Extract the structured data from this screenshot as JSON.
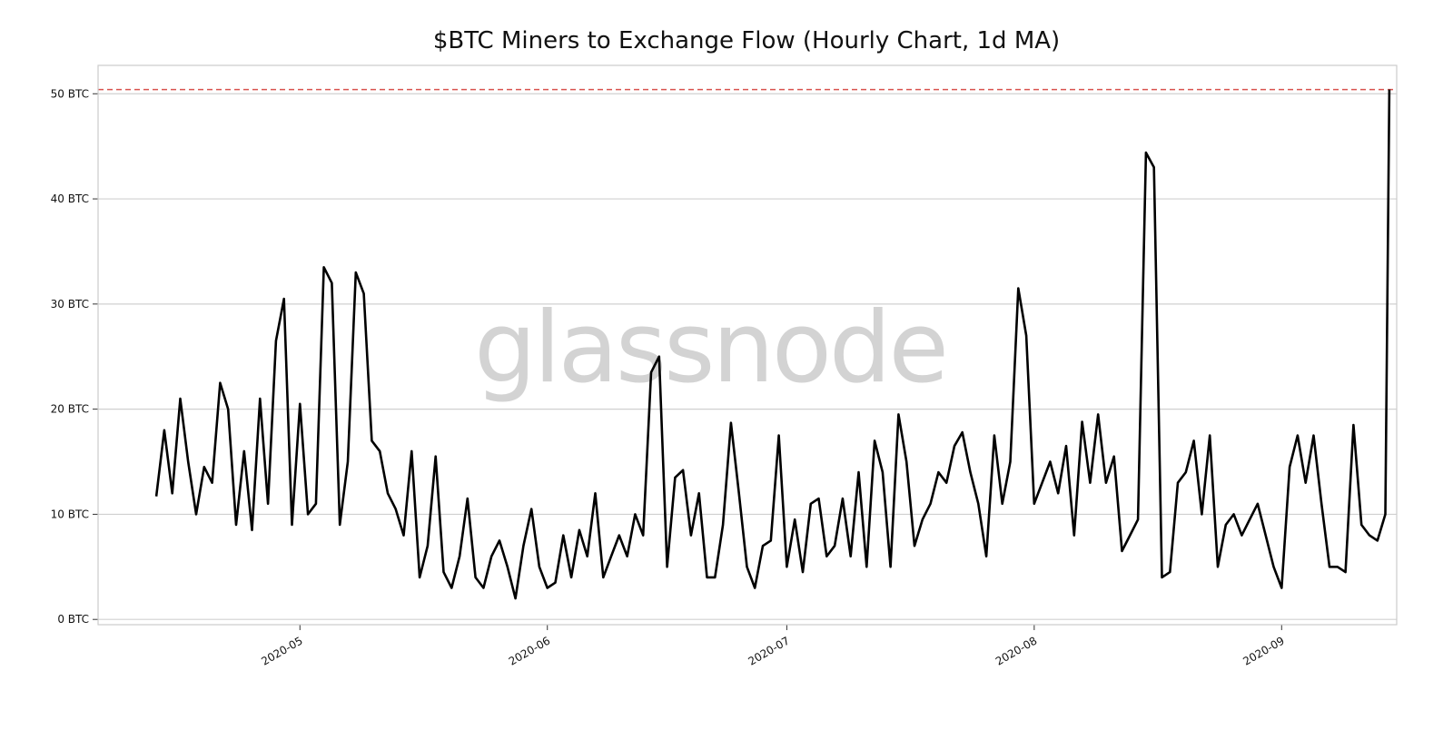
{
  "chart_data": {
    "type": "line",
    "title": "$BTC Miners to Exchange Flow (Hourly Chart, 1d MA)",
    "xlabel": "",
    "ylabel": "",
    "watermark": "glassnode",
    "xlim": [
      "2020-04-05T17:00:00Z",
      "2020-09-15T10:00:00Z"
    ],
    "ylim": [
      -0.5,
      52.7
    ],
    "grid": "horizontal",
    "y_ticks": [
      {
        "value": 0,
        "label": "0 BTC"
      },
      {
        "value": 10,
        "label": "10 BTC"
      },
      {
        "value": 20,
        "label": "20 BTC"
      },
      {
        "value": 30,
        "label": "30 BTC"
      },
      {
        "value": 40,
        "label": "40 BTC"
      },
      {
        "value": 50,
        "label": "50 BTC"
      }
    ],
    "x_ticks": [
      {
        "value": "2020-05-01",
        "label": "2020-05"
      },
      {
        "value": "2020-06-01",
        "label": "2020-06"
      },
      {
        "value": "2020-07-01",
        "label": "2020-07"
      },
      {
        "value": "2020-08-01",
        "label": "2020-08"
      },
      {
        "value": "2020-09-01",
        "label": "2020-09"
      }
    ],
    "reference_line": {
      "value": 50.4,
      "style": "dashed",
      "color": "#d9534f"
    },
    "colors": {
      "line": "#000000",
      "grid": "#d0d0d0",
      "watermark": "#d3d3d3",
      "frame": "#cccccc"
    },
    "series": [
      {
        "x": [
          "2020-04-13",
          "2020-04-14",
          "2020-04-15",
          "2020-04-16",
          "2020-04-17",
          "2020-04-18",
          "2020-04-19",
          "2020-04-20",
          "2020-04-21",
          "2020-04-22",
          "2020-04-23",
          "2020-04-24",
          "2020-04-25",
          "2020-04-26",
          "2020-04-27",
          "2020-04-28",
          "2020-04-29",
          "2020-04-30",
          "2020-05-01",
          "2020-05-02",
          "2020-05-03",
          "2020-05-04",
          "2020-05-05",
          "2020-05-06",
          "2020-05-07",
          "2020-05-08",
          "2020-05-09",
          "2020-05-10",
          "2020-05-11",
          "2020-05-12",
          "2020-05-13",
          "2020-05-14",
          "2020-05-15",
          "2020-05-16",
          "2020-05-17",
          "2020-05-18",
          "2020-05-19",
          "2020-05-20",
          "2020-05-21",
          "2020-05-22",
          "2020-05-23",
          "2020-05-24",
          "2020-05-25",
          "2020-05-26",
          "2020-05-27",
          "2020-05-28",
          "2020-05-29",
          "2020-05-30",
          "2020-05-31",
          "2020-06-01",
          "2020-06-02",
          "2020-06-03",
          "2020-06-04",
          "2020-06-05",
          "2020-06-06",
          "2020-06-07",
          "2020-06-08",
          "2020-06-09",
          "2020-06-10",
          "2020-06-11",
          "2020-06-12",
          "2020-06-13",
          "2020-06-14",
          "2020-06-15",
          "2020-06-16",
          "2020-06-17",
          "2020-06-18",
          "2020-06-19",
          "2020-06-20",
          "2020-06-21",
          "2020-06-22",
          "2020-06-23",
          "2020-06-24",
          "2020-06-25",
          "2020-06-26",
          "2020-06-27",
          "2020-06-28",
          "2020-06-29",
          "2020-06-30",
          "2020-07-01",
          "2020-07-02",
          "2020-07-03",
          "2020-07-04",
          "2020-07-05",
          "2020-07-06",
          "2020-07-07",
          "2020-07-08",
          "2020-07-09",
          "2020-07-10",
          "2020-07-11",
          "2020-07-12",
          "2020-07-13",
          "2020-07-14",
          "2020-07-15",
          "2020-07-16",
          "2020-07-17",
          "2020-07-18",
          "2020-07-19",
          "2020-07-20",
          "2020-07-21",
          "2020-07-22",
          "2020-07-23",
          "2020-07-24",
          "2020-07-25",
          "2020-07-26",
          "2020-07-27",
          "2020-07-28",
          "2020-07-29",
          "2020-07-30",
          "2020-07-31",
          "2020-08-01",
          "2020-08-02",
          "2020-08-03",
          "2020-08-04",
          "2020-08-05",
          "2020-08-06",
          "2020-08-07",
          "2020-08-08",
          "2020-08-09",
          "2020-08-10",
          "2020-08-11",
          "2020-08-12",
          "2020-08-13",
          "2020-08-14",
          "2020-08-15",
          "2020-08-16",
          "2020-08-17",
          "2020-08-18",
          "2020-08-19",
          "2020-08-20",
          "2020-08-21",
          "2020-08-22",
          "2020-08-23",
          "2020-08-24",
          "2020-08-25",
          "2020-08-26",
          "2020-08-27",
          "2020-08-28",
          "2020-08-29",
          "2020-08-30",
          "2020-08-31",
          "2020-09-01",
          "2020-09-02",
          "2020-09-03",
          "2020-09-04",
          "2020-09-05",
          "2020-09-06",
          "2020-09-07",
          "2020-09-08",
          "2020-09-09",
          "2020-09-10",
          "2020-09-11",
          "2020-09-12",
          "2020-09-13",
          "2020-09-14",
          "2020-09-14T12:00:00Z"
        ],
        "y": [
          11.7,
          18,
          12,
          21,
          15,
          10,
          14.5,
          13,
          22.5,
          20,
          9,
          16,
          8.5,
          21,
          11,
          26.5,
          30.5,
          9,
          20.5,
          10,
          11,
          33.5,
          32,
          9,
          15,
          33,
          31,
          17,
          16,
          12,
          10.5,
          8,
          16,
          4,
          7,
          15.5,
          4.5,
          3,
          6,
          11.5,
          4,
          3,
          6,
          7.5,
          5,
          2,
          7,
          10.5,
          5,
          3,
          3.5,
          8,
          4,
          8.5,
          6,
          12,
          4,
          6,
          8,
          6,
          10,
          8,
          23.5,
          25,
          5,
          13.5,
          14.2,
          8,
          12,
          4,
          4,
          9,
          18.7,
          12,
          5,
          3,
          7,
          7.5,
          17.5,
          5,
          9.5,
          4.5,
          11,
          11.5,
          6,
          7,
          11.5,
          6,
          14,
          5,
          17,
          14,
          5,
          19.5,
          15,
          7,
          9.5,
          11,
          14,
          13,
          16.5,
          17.8,
          14,
          11,
          6,
          17.5,
          11,
          15,
          31.5,
          27,
          11,
          13,
          15,
          12,
          16.5,
          8,
          18.8,
          13,
          19.5,
          13,
          15.5,
          6.5,
          8,
          9.5,
          44.4,
          43,
          4,
          4.5,
          13,
          14,
          17,
          10,
          17.5,
          5,
          9,
          10,
          8,
          9.5,
          11,
          8,
          5,
          3,
          14.5,
          17.5,
          13,
          17.5,
          11,
          5,
          5,
          4.5,
          18.5,
          9,
          8,
          7.5,
          10,
          50.4
        ]
      }
    ]
  }
}
